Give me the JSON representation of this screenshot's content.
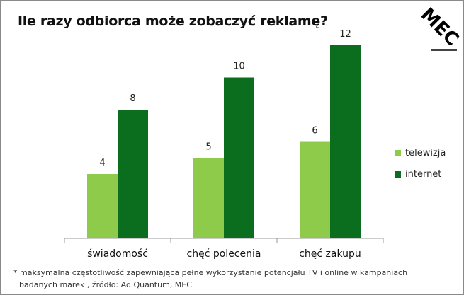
{
  "title": "Ile razy odbiorca może zobaczyć reklamę?",
  "logo_text": "MEC",
  "footnote_line1": "* maksymalna częstotliwość zapewniająca pełne wykorzystanie potencjału  TV i online w kampaniach",
  "footnote_line2": "badanych marek , źródło: Ad Quantum, MEC",
  "colors": {
    "telewizja": "#8fcb4a",
    "internet": "#0b6e1f"
  },
  "chart_data": {
    "type": "bar",
    "categories": [
      "świadomość",
      "chęć polecenia",
      "chęć zakupu"
    ],
    "series": [
      {
        "name": "telewizja",
        "values": [
          4,
          5,
          6
        ]
      },
      {
        "name": "internet",
        "values": [
          8,
          10,
          12
        ]
      }
    ],
    "ylim": [
      0,
      12
    ],
    "grid": false,
    "legend": "right",
    "data_labels": true
  }
}
